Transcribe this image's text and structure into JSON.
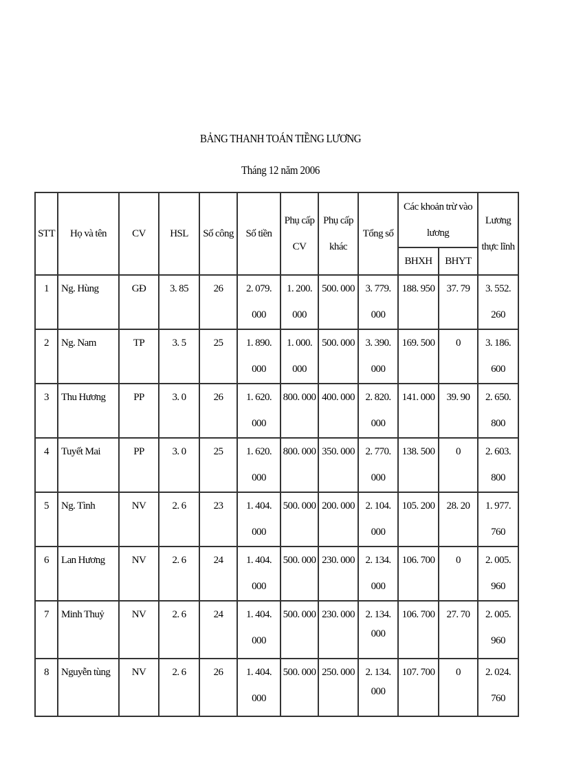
{
  "document": {
    "title": "BẢNG THANH TOÁN TIỀNG LƯƠNG",
    "subtitle": "Tháng 12 năm 2006"
  },
  "table": {
    "headers": {
      "stt": "STT",
      "name": "Họ và tên",
      "cv": "CV",
      "hsl": "HSL",
      "so_cong": "Số công",
      "so_tien": "Số tiền",
      "phu_cap_cv": "Phụ cấp\nCV",
      "phu_cap_khac": "Phụ cấp\nkhác",
      "tong_so": "Tổng số",
      "deductions": "Các khoản trừ vào\nlương",
      "bhxh": "BHXH",
      "bhyt": "BHYT",
      "luong_thuc_linh": "Lương\nthực lĩnh"
    },
    "rows": [
      {
        "stt": "1",
        "name": "Ng. Hùng",
        "cv": "GĐ",
        "hsl": "3. 85",
        "so_cong": "26",
        "so_tien": "2. 079.\n000",
        "phu_cap_cv": "1. 200.\n000",
        "phu_cap_khac": "500. 000",
        "tong_so": "3. 779.\n000",
        "bhxh": "188. 950",
        "bhyt": "37. 79",
        "luong": "3. 552.\n260"
      },
      {
        "stt": "2",
        "name": "Ng. Nam",
        "cv": "TP",
        "hsl": "3. 5",
        "so_cong": "25",
        "so_tien": "1. 890.\n000",
        "phu_cap_cv": "1. 000.\n000",
        "phu_cap_khac": "500. 000",
        "tong_so": "3. 390.\n000",
        "bhxh": "169. 500",
        "bhyt": "0",
        "luong": "3. 186.\n600"
      },
      {
        "stt": "3",
        "name": "Thu Hương",
        "cv": "PP",
        "hsl": "3. 0",
        "so_cong": "26",
        "so_tien": "1. 620.\n000",
        "phu_cap_cv": "800. 000",
        "phu_cap_khac": "400. 000",
        "tong_so": "2. 820.\n000",
        "bhxh": "141. 000",
        "bhyt": "39. 90",
        "luong": "2. 650.\n800"
      },
      {
        "stt": "4",
        "name": "Tuyết Mai",
        "cv": "PP",
        "hsl": "3. 0",
        "so_cong": "25",
        "so_tien": "1. 620.\n000",
        "phu_cap_cv": "800. 000",
        "phu_cap_khac": "350. 000",
        "tong_so": "2. 770.\n000",
        "bhxh": "138. 500",
        "bhyt": "0",
        "luong": "2. 603.\n800"
      },
      {
        "stt": "5",
        "name": "Ng. Tình",
        "cv": "NV",
        "hsl": "2. 6",
        "so_cong": "23",
        "so_tien": "1. 404.\n000",
        "phu_cap_cv": "500. 000",
        "phu_cap_khac": "200. 000",
        "tong_so": "2. 104.\n000",
        "bhxh": "105. 200",
        "bhyt": "28. 20",
        "luong": "1. 977.\n760"
      },
      {
        "stt": "6",
        "name": "Lan Hương",
        "cv": "NV",
        "hsl": "2. 6",
        "so_cong": "24",
        "so_tien": "1. 404.\n000",
        "phu_cap_cv": "500. 000",
        "phu_cap_khac": "230. 000",
        "tong_so": "2. 134.\n000",
        "bhxh": "106. 700",
        "bhyt": "0",
        "luong": "2. 005.\n960"
      },
      {
        "stt": "7",
        "name": "Minh Thuỷ",
        "cv": "NV",
        "hsl": "2. 6",
        "so_cong": "24",
        "so_tien": "1. 404.\n000",
        "phu_cap_cv": "500. 000",
        "phu_cap_khac": "230. 000",
        "tong_so": "2. 134.\n000",
        "bhxh": "106. 700",
        "bhyt": "27. 70",
        "luong": "2. 005.\n960"
      },
      {
        "stt": "8",
        "name": "Nguyễn tùng",
        "cv": "NV",
        "hsl": "2. 6",
        "so_cong": "26",
        "so_tien": "1. 404.\n000",
        "phu_cap_cv": "500. 000",
        "phu_cap_khac": "250. 000",
        "tong_so": "2. 134.\n000",
        "bhxh": "107. 700",
        "bhyt": "0",
        "luong": "2. 024.\n760"
      }
    ]
  }
}
